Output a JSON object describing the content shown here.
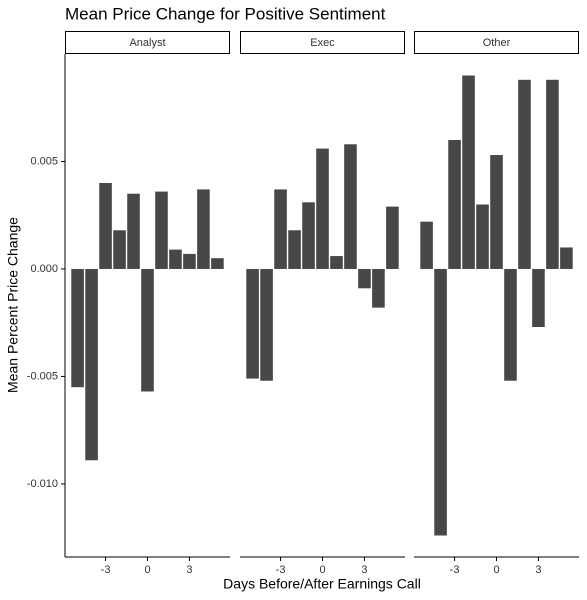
{
  "chart_data": {
    "type": "bar",
    "title": "Mean Price Change for Positive Sentiment",
    "x_label": "Days Before/After Earnings Call",
    "y_label": "Mean Percent Price Change",
    "x": [
      -5,
      -4,
      -3,
      -2,
      -1,
      0,
      1,
      2,
      3,
      4,
      5
    ],
    "xlim": [
      -5.9,
      5.9
    ],
    "xticks": [
      -3,
      0,
      3
    ],
    "ylim": [
      -0.0134,
      0.01
    ],
    "yticks": [
      {
        "value": -0.01,
        "label": "-0.010"
      },
      -0.005,
      {
        "value": 0,
        "label": "0.000"
      },
      0.005
    ],
    "color": "#474747",
    "series": [
      {
        "name": "Analyst",
        "values": [
          -0.0055,
          -0.0089,
          0.004,
          0.0018,
          0.0035,
          -0.0057,
          0.0036,
          0.0009,
          0.0007,
          0.0037,
          0.0005
        ]
      },
      {
        "name": "Exec",
        "values": [
          -0.0051,
          -0.0052,
          0.0037,
          0.0018,
          0.0031,
          0.0056,
          0.0006,
          0.0058,
          -0.0009,
          -0.0018,
          0.0029
        ]
      },
      {
        "name": "Other",
        "values": [
          0.0022,
          -0.0124,
          0.006,
          0.009,
          0.003,
          0.0053,
          -0.0052,
          0.0088,
          -0.0027,
          0.0088,
          0.001
        ]
      }
    ]
  }
}
